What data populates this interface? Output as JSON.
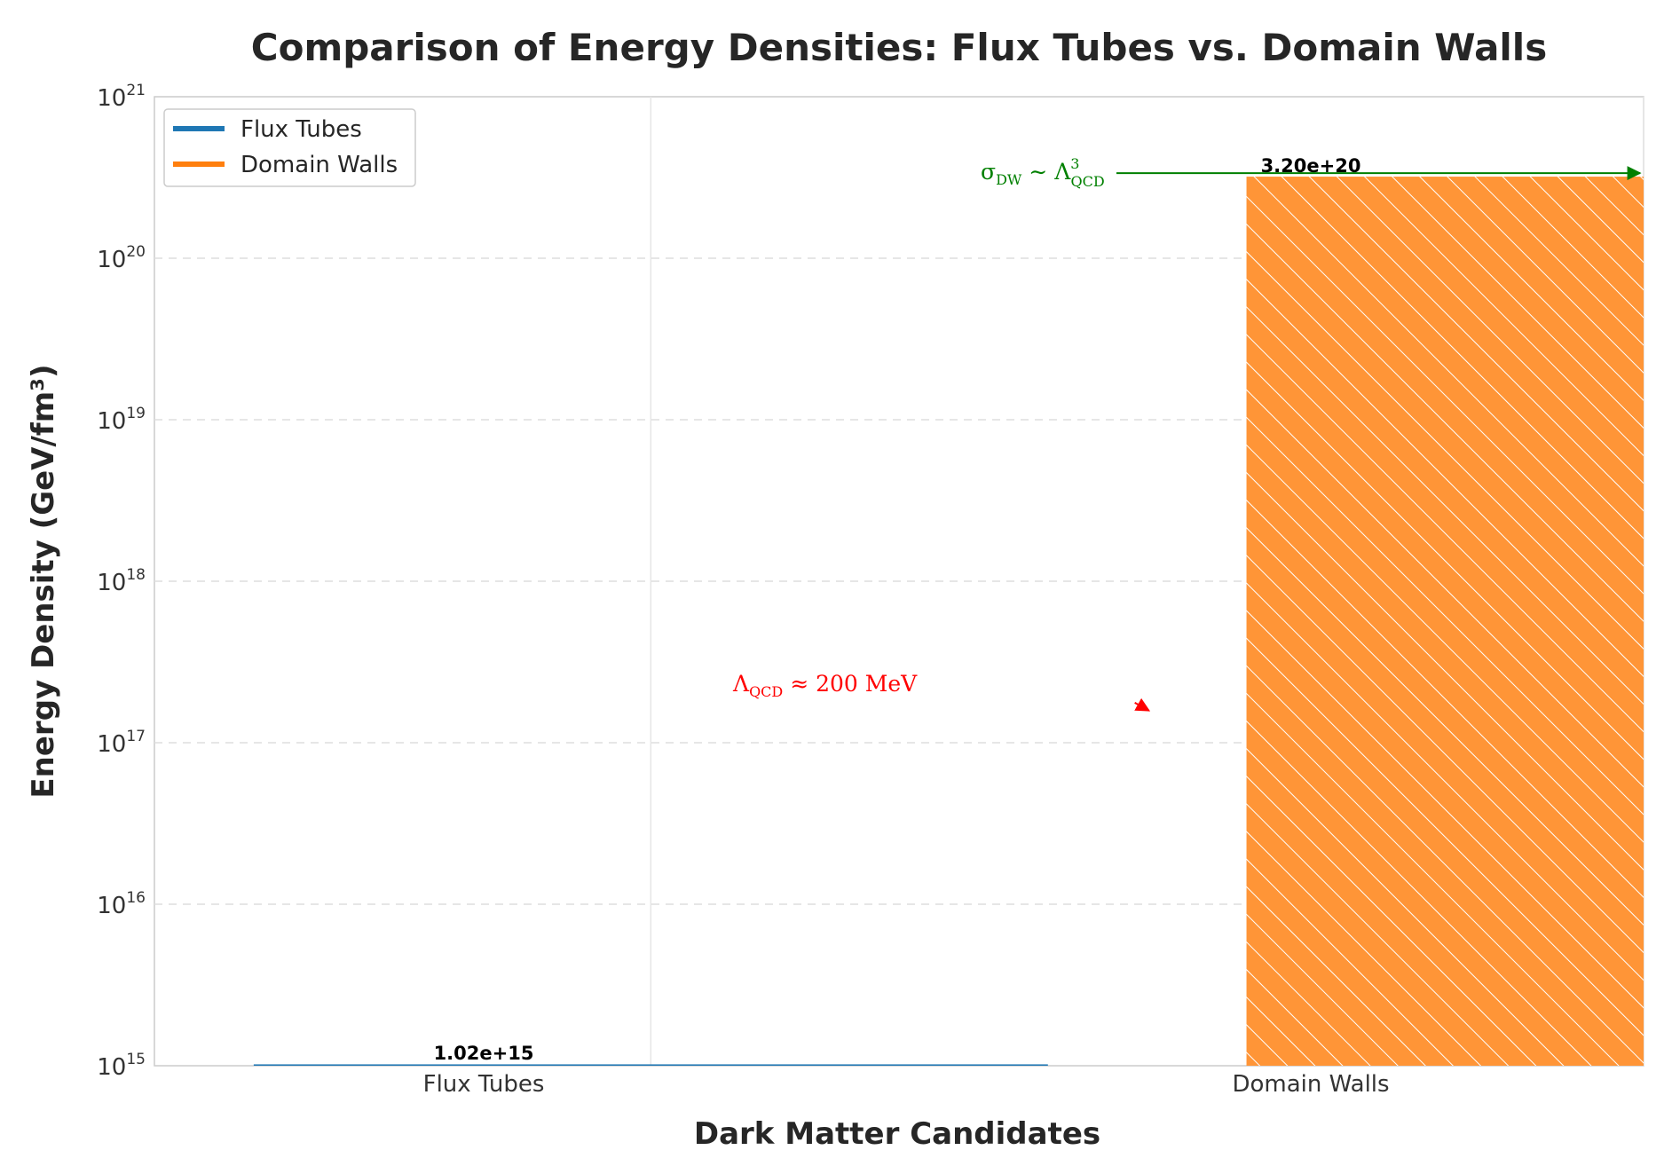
{
  "chart_data": {
    "type": "bar",
    "title": "Comparison of Energy Densities: Flux Tubes vs. Domain Walls",
    "xlabel": "Dark Matter Candidates",
    "ylabel": "Energy Density (GeV/fm³)",
    "yscale": "log",
    "ylim": [
      1000000000000000.0,
      1e+21
    ],
    "ytick_exponents": [
      15,
      16,
      17,
      18,
      19,
      20,
      21
    ],
    "tick_base": "10",
    "categories": [
      "Flux Tubes",
      "Domain Walls"
    ],
    "values": [
      1020000000000000.0,
      3.2e+20
    ],
    "value_labels": [
      "1.02e+15",
      "3.20e+20"
    ],
    "colors": [
      "#1f77b4",
      "#ff7f0e"
    ],
    "hatch": "\\\\",
    "grid": "y-dashed",
    "legend": {
      "placement": "upper-left",
      "entries": [
        "Flux Tubes",
        "Domain Walls"
      ]
    },
    "annotations": {
      "lambda_qcd": {
        "symbol": "Λ",
        "subscript": "QCD",
        "relation": " ≈ 200 MeV",
        "color": "#ff0000",
        "arrow_target": {
          "category_index": 0.5,
          "value": 1.6e+17
        }
      },
      "sigma_dw": {
        "symbol": "σ",
        "subscript": "DW",
        "relation": " ∼ Λ",
        "power": "3",
        "lower_subscript": "QCD",
        "color": "#008000",
        "arrow_target": {
          "category_index": 1,
          "value": 3.2e+20
        }
      }
    }
  }
}
